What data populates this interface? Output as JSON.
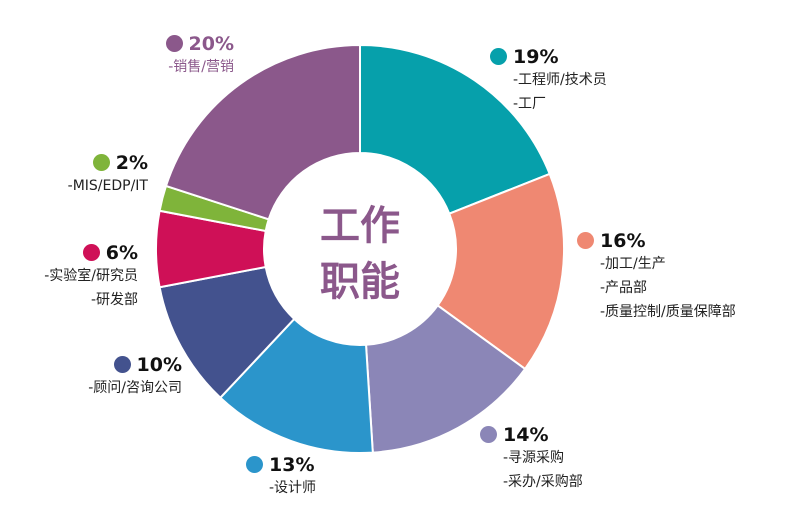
{
  "center_title": [
    "工作",
    "职能"
  ],
  "chart_data": {
    "type": "pie",
    "donut": true,
    "categories": [
      "工程师/技术员; 工厂",
      "加工/生产; 产品部; 质量控制/质量保障部",
      "寻源采购; 采办/采购部",
      "设计师",
      "顾问/咨询公司",
      "实验室/研究员; 研发部",
      "MIS/EDP/IT",
      "销售/营销"
    ],
    "values": [
      19,
      16,
      14,
      13,
      10,
      6,
      2,
      20
    ],
    "colors": [
      "#06a0ab",
      "#ef8872",
      "#8b86b7",
      "#2b95cb",
      "#43528e",
      "#cf1057",
      "#7fb43a",
      "#8b588b"
    ]
  },
  "labels": [
    {
      "pct": "19%",
      "lines": [
        "-工程师/技术员",
        "-工厂"
      ]
    },
    {
      "pct": "16%",
      "lines": [
        "-加工/生产",
        "-产品部",
        "-质量控制/质量保障部"
      ]
    },
    {
      "pct": "14%",
      "lines": [
        "-寻源采购",
        "-采办/采购部"
      ]
    },
    {
      "pct": "13%",
      "lines": [
        "-设计师"
      ]
    },
    {
      "pct": "10%",
      "lines": [
        "-顾问/咨询公司"
      ]
    },
    {
      "pct": "6%",
      "lines": [
        "-实验室/研究员",
        "-研发部"
      ]
    },
    {
      "pct": "2%",
      "lines": [
        "-MIS/EDP/IT"
      ]
    },
    {
      "pct": "20%",
      "lines": [
        "-销售/营销"
      ],
      "colored": true
    }
  ]
}
